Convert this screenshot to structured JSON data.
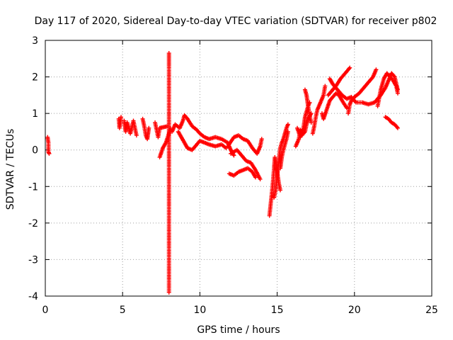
{
  "chart_data": {
    "type": "scatter",
    "title": "Day 117 of 2020, Sidereal Day-to-day VTEC variation (SDTVAR) for receiver p802",
    "xlabel": "GPS time / hours",
    "ylabel": "SDTVAR / TECUs",
    "xlim": [
      0,
      25
    ],
    "ylim": [
      -4,
      3
    ],
    "xticks": [
      "0",
      "5",
      "10",
      "15",
      "20",
      "25"
    ],
    "yticks": [
      "-4",
      "-3",
      "-2",
      "-1",
      "0",
      "1",
      "2",
      "3"
    ],
    "xtick_values": [
      0,
      5,
      10,
      15,
      20,
      25
    ],
    "ytick_values": [
      -4,
      -3,
      -2,
      -1,
      0,
      1,
      2,
      3
    ],
    "grid": true,
    "marker": "plus",
    "color": "#ff0000",
    "series": [
      {
        "name": "SDTVAR",
        "tracks": [
          [
            [
              0.15,
              0.35
            ],
            [
              0.2,
              0.2
            ],
            [
              0.2,
              -0.05
            ],
            [
              0.25,
              -0.1
            ]
          ],
          [
            [
              4.75,
              0.85
            ],
            [
              4.8,
              0.6
            ],
            [
              4.9,
              0.9
            ]
          ],
          [
            [
              5.1,
              0.8
            ],
            [
              5.2,
              0.5
            ],
            [
              5.3,
              0.75
            ],
            [
              5.5,
              0.45
            ],
            [
              5.7,
              0.8
            ],
            [
              5.8,
              0.6
            ],
            [
              5.9,
              0.4
            ]
          ],
          [
            [
              6.3,
              0.85
            ],
            [
              6.4,
              0.65
            ],
            [
              6.5,
              0.4
            ],
            [
              6.6,
              0.3
            ],
            [
              6.7,
              0.6
            ]
          ],
          [
            [
              7.1,
              0.75
            ],
            [
              7.2,
              0.55
            ],
            [
              7.3,
              0.35
            ],
            [
              7.4,
              0.6
            ],
            [
              7.6,
              0.62
            ],
            [
              7.9,
              0.65
            ]
          ],
          [
            [
              7.4,
              -0.2
            ],
            [
              7.6,
              0.05
            ],
            [
              7.8,
              0.2
            ],
            [
              8.0,
              0.45
            ],
            [
              8.1,
              0.6
            ]
          ],
          [
            [
              8.0,
              2.65
            ],
            [
              8.0,
              2.3
            ],
            [
              8.0,
              -3.9
            ]
          ],
          [
            [
              8.2,
              0.5
            ],
            [
              8.4,
              0.7
            ],
            [
              8.7,
              0.6
            ],
            [
              8.9,
              0.8
            ],
            [
              9.0,
              0.95
            ],
            [
              9.2,
              0.85
            ],
            [
              9.5,
              0.65
            ],
            [
              9.8,
              0.55
            ],
            [
              10.0,
              0.45
            ],
            [
              10.3,
              0.35
            ],
            [
              10.6,
              0.3
            ],
            [
              11.0,
              0.35
            ],
            [
              11.4,
              0.3
            ],
            [
              11.8,
              0.2
            ],
            [
              12.0,
              0.0
            ],
            [
              12.2,
              -0.15
            ]
          ],
          [
            [
              8.6,
              0.5
            ],
            [
              8.8,
              0.35
            ],
            [
              9.0,
              0.2
            ],
            [
              9.2,
              0.05
            ],
            [
              9.5,
              0.0
            ],
            [
              9.8,
              0.15
            ],
            [
              10.0,
              0.25
            ],
            [
              10.3,
              0.2
            ],
            [
              10.6,
              0.15
            ],
            [
              11.0,
              0.1
            ],
            [
              11.4,
              0.15
            ],
            [
              11.7,
              0.05
            ]
          ],
          [
            [
              11.8,
              0.1
            ],
            [
              12.2,
              0.35
            ],
            [
              12.5,
              0.4
            ],
            [
              12.8,
              0.3
            ],
            [
              13.1,
              0.25
            ],
            [
              13.4,
              0.05
            ],
            [
              13.7,
              -0.1
            ],
            [
              13.9,
              0.1
            ],
            [
              14.0,
              0.3
            ]
          ],
          [
            [
              12.0,
              -0.1
            ],
            [
              12.4,
              0.0
            ],
            [
              12.7,
              -0.15
            ],
            [
              13.0,
              -0.3
            ],
            [
              13.3,
              -0.35
            ],
            [
              13.6,
              -0.55
            ],
            [
              13.9,
              -0.8
            ]
          ],
          [
            [
              11.9,
              -0.65
            ],
            [
              12.2,
              -0.7
            ],
            [
              12.5,
              -0.6
            ],
            [
              12.8,
              -0.55
            ],
            [
              13.1,
              -0.5
            ],
            [
              13.4,
              -0.6
            ],
            [
              13.6,
              -0.75
            ]
          ],
          [
            [
              14.5,
              -1.8
            ],
            [
              14.6,
              -1.4
            ],
            [
              14.7,
              -1.0
            ],
            [
              14.8,
              -0.5
            ],
            [
              14.85,
              -0.2
            ],
            [
              14.9,
              -0.35
            ],
            [
              15.0,
              -0.6
            ],
            [
              15.1,
              -0.9
            ],
            [
              15.2,
              -1.1
            ]
          ],
          [
            [
              14.8,
              -1.3
            ],
            [
              14.9,
              -1.1
            ],
            [
              15.0,
              -0.7
            ],
            [
              15.1,
              -0.3
            ],
            [
              15.2,
              0.05
            ],
            [
              15.3,
              0.2
            ],
            [
              15.4,
              0.3
            ],
            [
              15.5,
              0.45
            ],
            [
              15.6,
              0.6
            ],
            [
              15.7,
              0.7
            ]
          ],
          [
            [
              15.2,
              -0.5
            ],
            [
              15.3,
              -0.2
            ],
            [
              15.4,
              0.0
            ],
            [
              15.5,
              0.15
            ],
            [
              15.6,
              0.3
            ],
            [
              15.7,
              0.5
            ]
          ],
          [
            [
              16.2,
              0.1
            ],
            [
              16.4,
              0.3
            ],
            [
              16.5,
              0.55
            ],
            [
              16.6,
              0.4
            ],
            [
              16.8,
              0.5
            ],
            [
              16.9,
              0.7
            ],
            [
              17.0,
              0.85
            ],
            [
              17.2,
              1.0
            ]
          ],
          [
            [
              16.3,
              0.6
            ],
            [
              16.5,
              0.35
            ],
            [
              16.7,
              0.6
            ],
            [
              16.8,
              0.9
            ],
            [
              17.0,
              1.2
            ],
            [
              17.1,
              1.3
            ]
          ],
          [
            [
              16.8,
              1.65
            ],
            [
              16.9,
              1.5
            ],
            [
              17.0,
              1.2
            ],
            [
              17.1,
              0.95
            ],
            [
              17.2,
              0.75
            ]
          ],
          [
            [
              17.3,
              0.45
            ],
            [
              17.4,
              0.65
            ],
            [
              17.5,
              0.9
            ],
            [
              17.6,
              1.1
            ],
            [
              17.8,
              1.3
            ],
            [
              18.0,
              1.5
            ],
            [
              18.1,
              1.75
            ]
          ],
          [
            [
              17.9,
              1.0
            ],
            [
              18.0,
              0.85
            ],
            [
              18.2,
              1.1
            ],
            [
              18.4,
              1.35
            ],
            [
              18.6,
              1.45
            ],
            [
              18.8,
              1.55
            ],
            [
              19.0,
              1.5
            ],
            [
              19.2,
              1.35
            ],
            [
              19.5,
              1.15
            ]
          ],
          [
            [
              18.3,
              1.5
            ],
            [
              18.6,
              1.65
            ],
            [
              18.8,
              1.75
            ],
            [
              19.1,
              1.95
            ],
            [
              19.3,
              2.05
            ],
            [
              19.5,
              2.15
            ],
            [
              19.7,
              2.25
            ]
          ],
          [
            [
              18.4,
              1.95
            ],
            [
              18.6,
              1.8
            ],
            [
              18.9,
              1.65
            ],
            [
              19.2,
              1.5
            ],
            [
              19.5,
              1.4
            ],
            [
              19.8,
              1.45
            ],
            [
              20.1,
              1.3
            ],
            [
              20.5,
              1.3
            ],
            [
              20.9,
              1.25
            ],
            [
              21.3,
              1.3
            ],
            [
              21.7,
              1.5
            ],
            [
              22.0,
              1.7
            ],
            [
              22.2,
              1.9
            ],
            [
              22.4,
              2.1
            ],
            [
              22.6,
              2.0
            ],
            [
              22.8,
              1.65
            ]
          ],
          [
            [
              19.6,
              1.0
            ],
            [
              19.7,
              1.25
            ],
            [
              19.8,
              1.35
            ],
            [
              20.0,
              1.45
            ],
            [
              20.3,
              1.55
            ],
            [
              20.6,
              1.7
            ],
            [
              20.9,
              1.85
            ],
            [
              21.2,
              2.0
            ],
            [
              21.4,
              2.2
            ]
          ],
          [
            [
              21.5,
              1.2
            ],
            [
              21.7,
              1.65
            ],
            [
              21.9,
              1.95
            ],
            [
              22.1,
              2.1
            ],
            [
              22.3,
              2.0
            ],
            [
              22.5,
              1.9
            ],
            [
              22.7,
              1.75
            ],
            [
              22.8,
              1.55
            ]
          ],
          [
            [
              22.0,
              0.9
            ],
            [
              22.2,
              0.85
            ],
            [
              22.4,
              0.75
            ],
            [
              22.6,
              0.7
            ],
            [
              22.8,
              0.6
            ]
          ]
        ]
      }
    ]
  }
}
